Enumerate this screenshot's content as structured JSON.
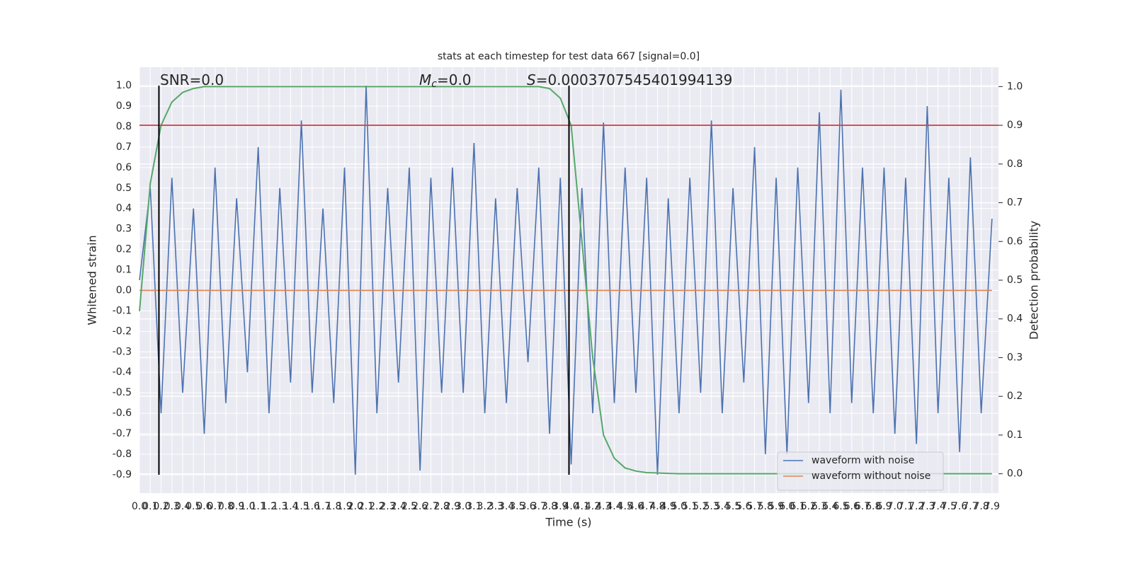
{
  "chart_data": {
    "type": "line",
    "title": "stats at each timestep for test data 667 [signal=0.0]",
    "xlabel": "Time (s)",
    "ylabel": "Whitened strain",
    "y2label": "Detection probability",
    "annotations": [
      {
        "text": "SNR=0.0"
      },
      {
        "symbol": "M",
        "subscript": "c",
        "text": "=0.0"
      },
      {
        "symbol": "S",
        "text": "=0.0003707545401994139"
      }
    ],
    "x": [
      0,
      0.1,
      0.2,
      0.3,
      0.4,
      0.5,
      0.6,
      0.7,
      0.8,
      0.9,
      1,
      1.1,
      1.2,
      1.3,
      1.4,
      1.5,
      1.6,
      1.7,
      1.8,
      1.9,
      2,
      2.1,
      2.2,
      2.3,
      2.4,
      2.5,
      2.6,
      2.7,
      2.8,
      2.9,
      3,
      3.1,
      3.2,
      3.3,
      3.4,
      3.5,
      3.6,
      3.7,
      3.8,
      3.9,
      4,
      4.1,
      4.2,
      4.3,
      4.4,
      4.5,
      4.6,
      4.7,
      4.8,
      4.9,
      5,
      5.1,
      5.2,
      5.3,
      5.4,
      5.5,
      5.6,
      5.7,
      5.8,
      5.9,
      6,
      6.1,
      6.2,
      6.3,
      6.4,
      6.5,
      6.6,
      6.7,
      6.8,
      6.9,
      7,
      7.1,
      7.2,
      7.3,
      7.4,
      7.5,
      7.6,
      7.7,
      7.8,
      7.9
    ],
    "series": [
      {
        "name": "waveform with noise",
        "color": "#4c72b0",
        "values": [
          0.05,
          0.5,
          -0.6,
          0.55,
          -0.5,
          0.4,
          -0.7,
          0.6,
          -0.55,
          0.45,
          -0.4,
          0.7,
          -0.6,
          0.5,
          -0.45,
          0.83,
          -0.5,
          0.4,
          -0.55,
          0.6,
          -0.9,
          1.0,
          -0.6,
          0.5,
          -0.45,
          0.6,
          -0.88,
          0.55,
          -0.5,
          0.6,
          -0.5,
          0.72,
          -0.6,
          0.45,
          -0.55,
          0.5,
          -0.35,
          0.6,
          -0.7,
          0.55,
          -0.85,
          0.5,
          -0.6,
          0.82,
          -0.55,
          0.6,
          -0.5,
          0.55,
          -0.9,
          0.45,
          -0.6,
          0.55,
          -0.5,
          0.83,
          -0.6,
          0.5,
          -0.45,
          0.7,
          -0.8,
          0.55,
          -0.8,
          0.6,
          -0.55,
          0.87,
          -0.6,
          0.98,
          -0.55,
          0.6,
          -0.6,
          0.6,
          -0.7,
          0.55,
          -0.75,
          0.9,
          -0.6,
          0.55,
          -0.79,
          0.65,
          -0.6,
          0.35
        ]
      },
      {
        "name": "waveform without noise",
        "color": "#dd8452",
        "values": [
          0,
          0,
          0,
          0,
          0,
          0,
          0,
          0,
          0,
          0,
          0,
          0,
          0,
          0,
          0,
          0,
          0,
          0,
          0,
          0,
          0,
          0,
          0,
          0,
          0,
          0,
          0,
          0,
          0,
          0,
          0,
          0,
          0,
          0,
          0,
          0,
          0,
          0,
          0,
          0,
          0,
          0,
          0,
          0,
          0,
          0,
          0,
          0,
          0,
          0,
          0,
          0,
          0,
          0,
          0,
          0,
          0,
          0,
          0,
          0,
          0,
          0,
          0,
          0,
          0,
          0,
          0,
          0,
          0,
          0,
          0,
          0,
          0,
          0,
          0,
          0,
          0,
          0,
          0,
          0
        ]
      },
      {
        "color": "#55a868",
        "axis": "y2",
        "values": [
          0.42,
          0.75,
          0.9,
          0.96,
          0.985,
          0.995,
          1,
          1,
          1,
          1,
          1,
          1,
          1,
          1,
          1,
          1,
          1,
          1,
          1,
          1,
          1,
          1,
          1,
          1,
          1,
          1,
          1,
          1,
          1,
          1,
          1,
          1,
          1,
          1,
          1,
          1,
          1,
          1,
          0.995,
          0.97,
          0.9,
          0.6,
          0.3,
          0.1,
          0.04,
          0.015,
          0.007,
          0.003,
          0.002,
          0.001,
          0,
          0,
          0,
          0,
          0,
          0,
          0,
          0,
          0,
          0,
          0,
          0,
          0,
          0,
          0,
          0,
          0,
          0,
          0,
          0,
          0,
          0,
          0,
          0,
          0,
          0,
          0,
          0,
          0,
          0
        ]
      }
    ],
    "hlines": [
      {
        "y": 0.9,
        "axis": "y2",
        "color": "#c44e52"
      }
    ],
    "vlines": [
      {
        "x": 0.18,
        "ymin": -0.9,
        "ymax": 1.0,
        "color": "#000000"
      },
      {
        "x": 3.98,
        "ymin": -0.9,
        "ymax": 1.0,
        "color": "#000000"
      }
    ],
    "xlim": [
      0,
      7.96
    ],
    "ylim": [
      -0.99,
      1.09
    ],
    "y2lim": [
      -0.05,
      1.05
    ],
    "xticks": [
      {
        "value": 0,
        "label": "0.0"
      },
      0.1,
      0.2,
      0.3,
      0.4,
      0.5,
      0.6,
      0.7,
      0.8,
      0.9,
      {
        "value": 1,
        "label": "1.0"
      },
      1.1,
      1.2,
      1.3,
      1.4,
      1.5,
      1.6,
      1.7,
      1.8,
      1.9,
      {
        "value": 2,
        "label": "2.0"
      },
      2.1,
      2.2,
      2.3,
      2.4,
      2.5,
      2.6,
      2.7,
      2.8,
      2.9,
      {
        "value": 3,
        "label": "3.0"
      },
      3.1,
      3.2,
      3.3,
      3.4,
      3.5,
      3.6,
      3.7,
      3.8,
      3.9,
      {
        "value": 4,
        "label": "4.0"
      },
      4.1,
      4.2,
      4.3,
      4.4,
      4.5,
      4.6,
      4.7,
      4.8,
      4.9,
      {
        "value": 5,
        "label": "5.0"
      },
      5.1,
      5.2,
      5.3,
      5.4,
      5.5,
      5.6,
      5.7,
      5.8,
      5.9,
      {
        "value": 6,
        "label": "6.0"
      },
      6.1,
      6.2,
      6.3,
      6.4,
      6.5,
      6.6,
      6.7,
      6.8,
      6.9,
      {
        "value": 7,
        "label": "7.0"
      },
      7.1,
      7.2,
      7.3,
      7.4,
      7.5,
      7.6,
      7.7,
      7.8,
      7.9
    ],
    "yticks": [
      -0.9,
      -0.8,
      -0.7,
      -0.6,
      -0.5,
      -0.4,
      -0.3,
      -0.2,
      -0.1,
      {
        "value": 0,
        "label": "0.0"
      },
      0.1,
      0.2,
      0.3,
      0.4,
      0.5,
      0.6,
      0.7,
      0.8,
      0.9,
      {
        "value": 1,
        "label": "1.0"
      }
    ],
    "y2ticks": [
      {
        "value": 0,
        "label": "0.0"
      },
      0.1,
      0.2,
      0.3,
      0.4,
      0.5,
      0.6,
      0.7,
      0.8,
      0.9,
      {
        "value": 1,
        "label": "1.0"
      }
    ],
    "grid": true,
    "legend": "lower right"
  }
}
